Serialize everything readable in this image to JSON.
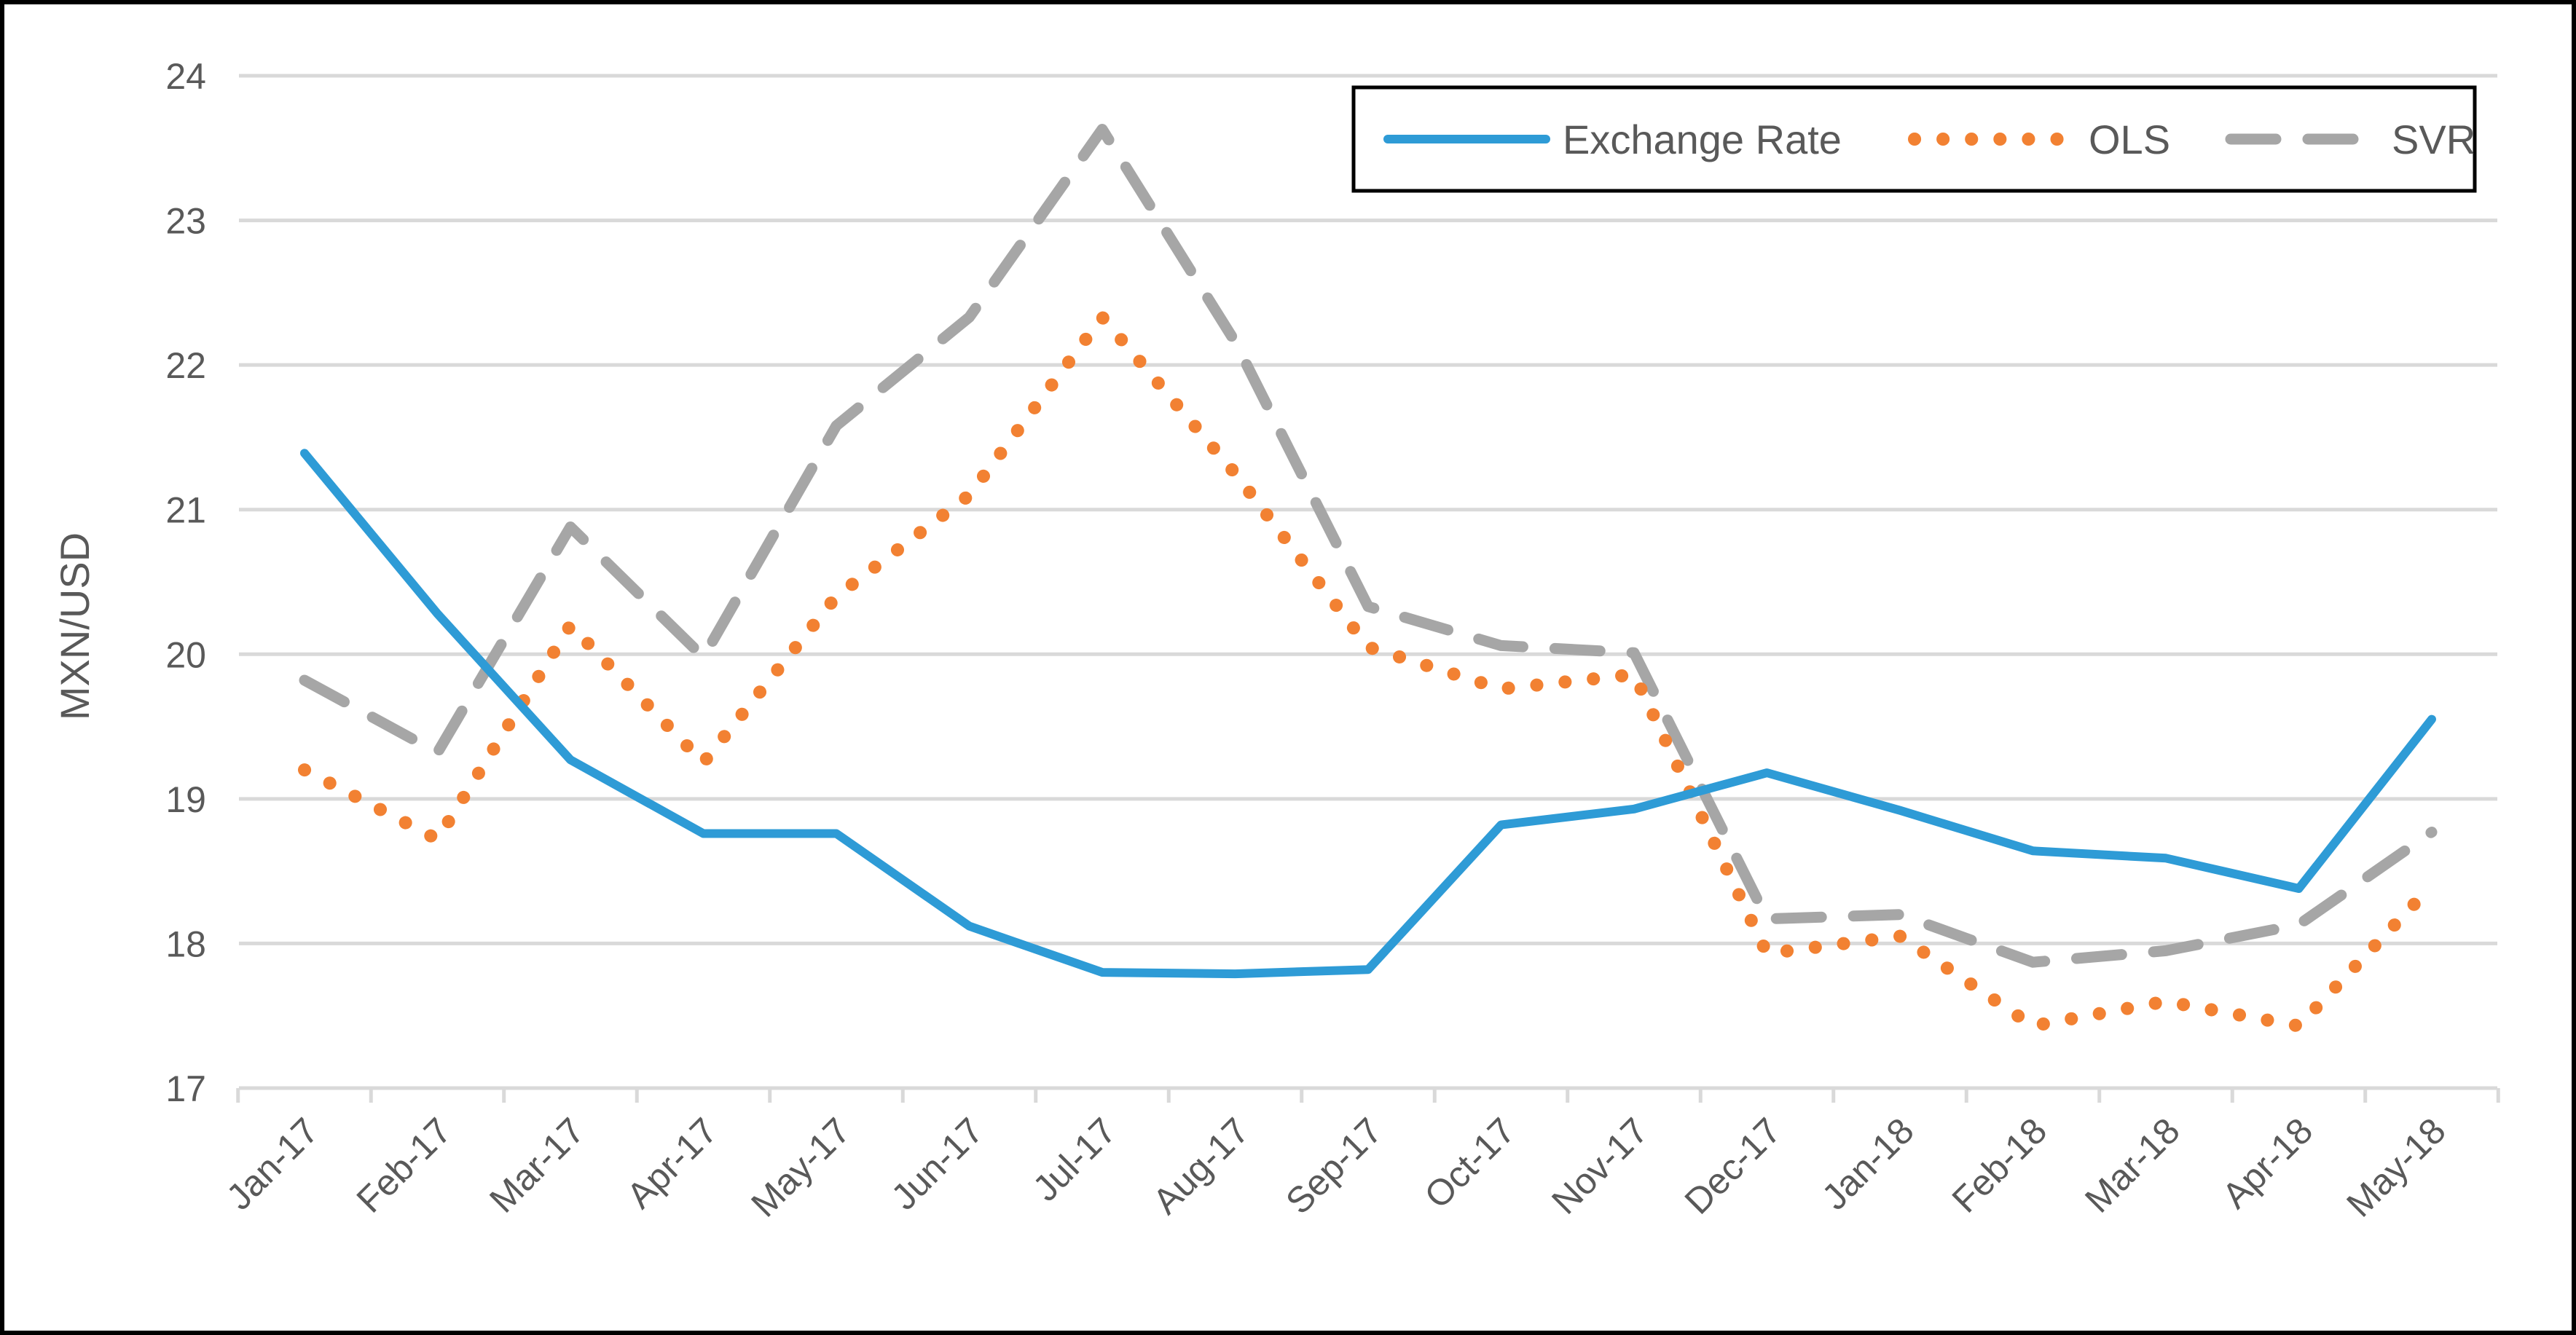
{
  "chart_data": {
    "type": "line",
    "title": "",
    "xlabel": "",
    "ylabel": "MXN/USD",
    "ylim": [
      17,
      24
    ],
    "yticks": [
      17,
      18,
      19,
      20,
      21,
      22,
      23,
      24
    ],
    "grid": "horizontal",
    "legend_position": "top-right",
    "categories": [
      "Jan-17",
      "Feb-17",
      "Mar-17",
      "Apr-17",
      "May-17",
      "Jun-17",
      "Jul-17",
      "Aug-17",
      "Sep-17",
      "Oct-17",
      "Nov-17",
      "Dec-17",
      "Jan-18",
      "Feb-18",
      "Mar-18",
      "Apr-18",
      "May-18"
    ],
    "series": [
      {
        "name": "Exchange Rate",
        "style": "solid",
        "color": "#2E9BD6",
        "values": [
          21.39,
          20.28,
          19.27,
          18.76,
          18.76,
          18.12,
          17.8,
          17.79,
          17.82,
          18.82,
          18.93,
          19.18,
          18.92,
          18.64,
          18.59,
          18.38,
          19.55
        ]
      },
      {
        "name": "OLS",
        "style": "dotted",
        "color": "#F28132",
        "values": [
          19.2,
          18.72,
          20.2,
          19.25,
          20.4,
          21.1,
          22.33,
          21.25,
          20.05,
          19.76,
          19.86,
          17.93,
          18.05,
          17.43,
          17.6,
          17.43,
          18.4
        ]
      },
      {
        "name": "SVR",
        "style": "dashed",
        "color": "#A6A6A6",
        "values": [
          19.82,
          19.32,
          20.88,
          19.98,
          21.58,
          22.33,
          23.63,
          22.16,
          20.33,
          20.06,
          20.01,
          18.17,
          18.2,
          17.87,
          17.95,
          18.13,
          18.77
        ]
      }
    ]
  }
}
